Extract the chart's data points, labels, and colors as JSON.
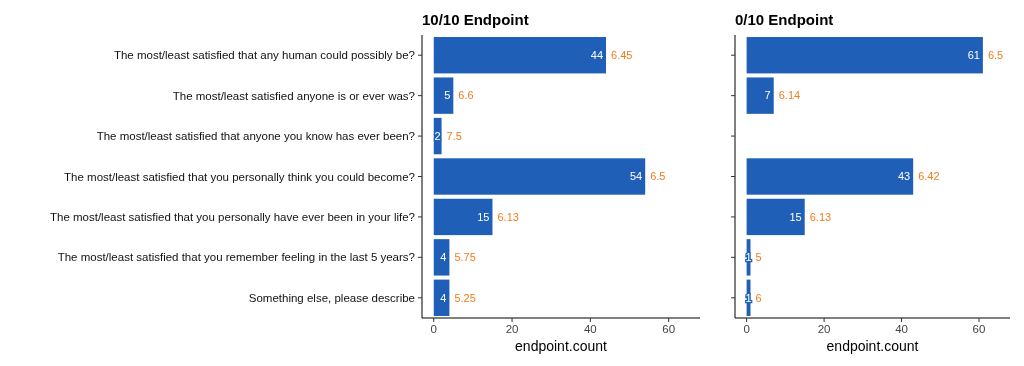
{
  "chart_data": [
    {
      "type": "bar",
      "orientation": "horizontal",
      "title": "10/10 Endpoint",
      "xlabel": "endpoint.count",
      "categories": [
        "The most/least satisfied that any human could possibly be?",
        "The most/least satisfied anyone is or ever was?",
        "The most/least satisfied that anyone you know has ever been?",
        "The most/least satisfied that you personally think you could become?",
        "The most/least satisfied that you personally have ever been in your life?",
        "The most/least satisfied that you remember feeling in the last 5 years?",
        "Something else, please describe"
      ],
      "values": [
        44,
        5,
        2,
        54,
        15,
        4,
        4
      ],
      "color": "#1f5fb8",
      "data_labels": true,
      "xlim": [
        -3,
        68
      ],
      "xticks": [
        0,
        20,
        40,
        60
      ],
      "grid": false,
      "annotations": [
        {
          "text": "6.45",
          "x": 44,
          "y": "The most/least satisfied that any human could possibly be?"
        },
        {
          "text": "6.6",
          "x": 5,
          "y": "The most/least satisfied anyone is or ever was?"
        },
        {
          "text": "7.5",
          "x": 2,
          "y": "The most/least satisfied that anyone you know has ever been?"
        },
        {
          "text": "6.5",
          "x": 54,
          "y": "The most/least satisfied that you personally think you could become?"
        },
        {
          "text": "6.13",
          "x": 15,
          "y": "The most/least satisfied that you personally have ever been in your life?"
        },
        {
          "text": "5.75",
          "x": 4,
          "y": "The most/least satisfied that you remember feeling in the last 5 years?"
        },
        {
          "text": "5.25",
          "x": 4,
          "y": "Something else, please describe"
        }
      ]
    },
    {
      "type": "bar",
      "orientation": "horizontal",
      "title": "0/10 Endpoint",
      "xlabel": "endpoint.count",
      "categories": [
        "The most/least satisfied that any human could possibly be?",
        "The most/least satisfied anyone is or ever was?",
        "The most/least satisfied that anyone you know has ever been?",
        "The most/least satisfied that you personally think you could become?",
        "The most/least satisfied that you personally have ever been in your life?",
        "The most/least satisfied that you remember feeling in the last 5 years?",
        "Something else, please describe"
      ],
      "values": [
        61,
        7,
        null,
        43,
        15,
        1,
        1
      ],
      "color": "#1f5fb8",
      "data_labels": true,
      "xlim": [
        -3,
        68
      ],
      "xticks": [
        0,
        20,
        40,
        60
      ],
      "grid": false,
      "tick_labels": "x",
      "annotations": [
        {
          "text": "6.5",
          "x": 61,
          "y": "The most/least satisfied that any human could possibly be?"
        },
        {
          "text": "6.14",
          "x": 7,
          "y": "The most/least satisfied anyone is or ever was?"
        },
        {
          "text": "6.42",
          "x": 43,
          "y": "The most/least satisfied that you personally think you could become?"
        },
        {
          "text": "6.13",
          "x": 15,
          "y": "The most/least satisfied that you personally have ever been in your life?"
        },
        {
          "text": "5",
          "x": 1,
          "y": "The most/least satisfied that you remember feeling in the last 5 years?"
        },
        {
          "text": "6",
          "x": 1,
          "y": "Something else, please describe"
        }
      ]
    }
  ]
}
